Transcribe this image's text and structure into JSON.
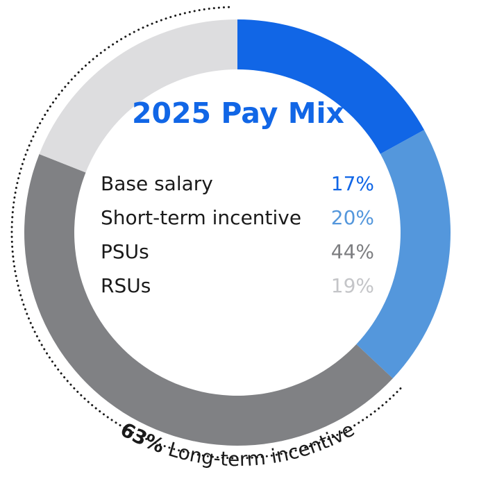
{
  "chart_data": {
    "type": "pie",
    "title": "2025 Pay Mix",
    "categories": [
      "Base salary",
      "Short-term incentive",
      "PSUs",
      "RSUs"
    ],
    "values": [
      17,
      20,
      44,
      19
    ],
    "value_labels": [
      "17%",
      "20%",
      "44%",
      "19%"
    ],
    "colors": [
      "#1166e6",
      "#5497dc",
      "#808184",
      "#dddddf"
    ],
    "label_colors": [
      "#1166e6",
      "#5497dc",
      "#7d7e81",
      "#c4c5c8"
    ],
    "annotation": {
      "value": "63%",
      "text": " Long-term incentive"
    }
  }
}
